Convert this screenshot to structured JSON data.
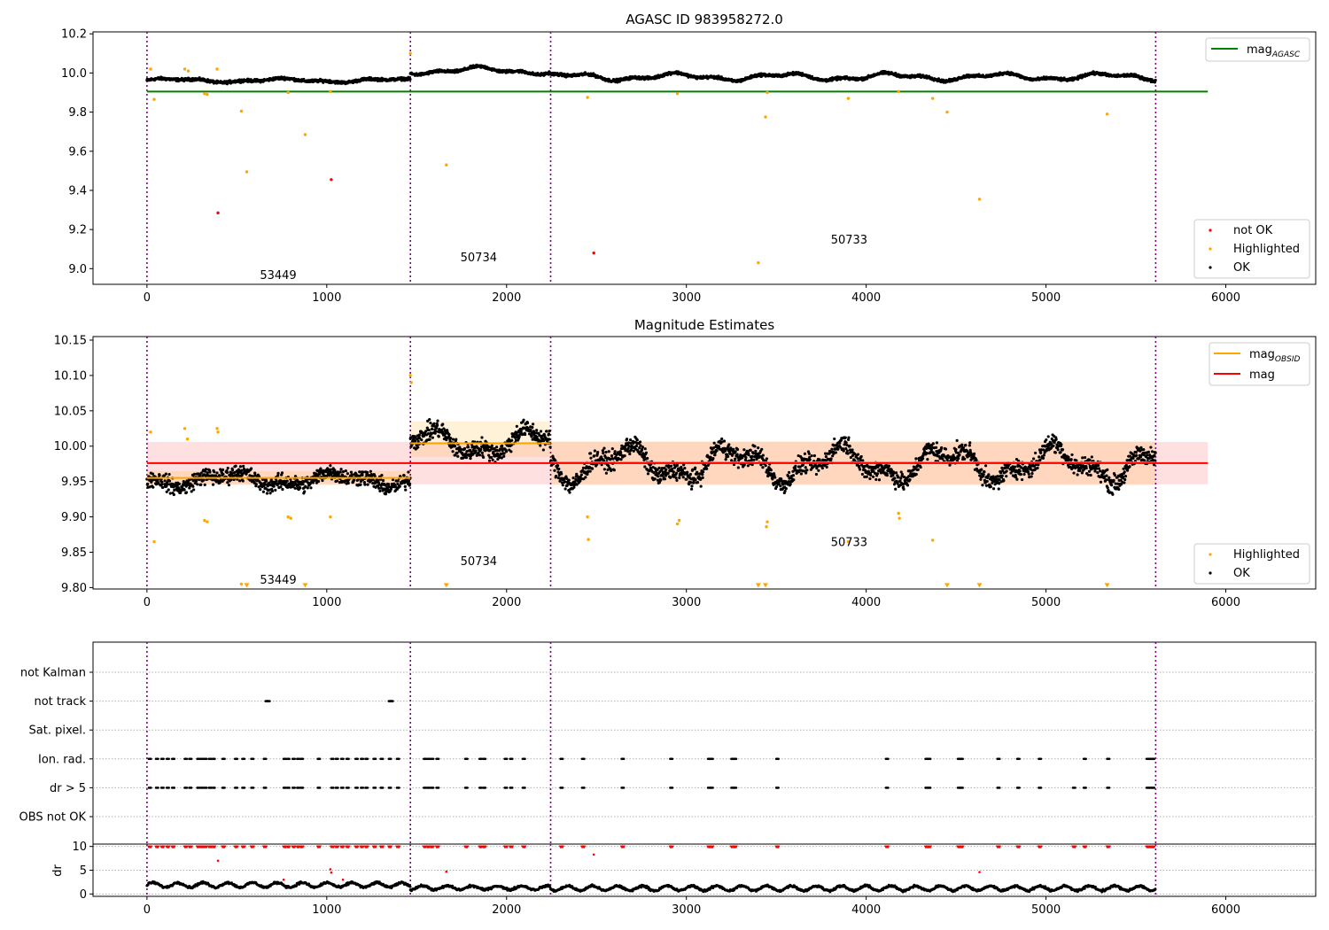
{
  "chart_data": [
    {
      "type": "scatter",
      "title": "AGASC ID 983958272.0",
      "xlabel": "",
      "ylabel": "",
      "xlim": [
        -300,
        6500
      ],
      "ylim": [
        8.92,
        10.21
      ],
      "xticks": [
        0,
        1000,
        2000,
        3000,
        4000,
        5000,
        6000
      ],
      "yticks": [
        9.0,
        9.2,
        9.4,
        9.6,
        9.8,
        10.0,
        10.2
      ],
      "ytick_labels": [
        "9.0",
        "9.2",
        "9.4",
        "9.6",
        "9.8",
        "10.0",
        "10.2"
      ],
      "obsid_boundaries": [
        0,
        1465,
        2245,
        5610
      ],
      "obsid_labels": [
        {
          "text": "53449",
          "x": 730,
          "y": 8.97
        },
        {
          "text": "50734",
          "x": 1845,
          "y": 9.06
        },
        {
          "text": "50733",
          "x": 3905,
          "y": 9.15
        }
      ],
      "reference_lines": [
        {
          "name": "mag_AGASC",
          "y": 9.905,
          "x": [
            0,
            5900
          ],
          "color": "#008000"
        }
      ],
      "legend_top": [
        {
          "label": "mag",
          "subscript": "AGASC",
          "color": "#008000"
        }
      ],
      "legend_bottom": [
        {
          "label": "not OK",
          "color": "#ff0000"
        },
        {
          "label": "Highlighted",
          "color": "#ffa500"
        },
        {
          "label": "OK",
          "color": "#000000"
        }
      ],
      "series": [
        {
          "name": "OK",
          "color": "#000000",
          "segments": [
            {
              "x": [
                0,
                1465
              ],
              "base": 9.962,
              "amp": 0.012,
              "noise": 0.012
            },
            {
              "x": [
                1465,
                2245
              ],
              "base": 10.012,
              "amp": 0.022,
              "noise": 0.012
            },
            {
              "x": [
                2245,
                5610
              ],
              "base": 9.98,
              "amp": 0.022,
              "noise": 0.012
            }
          ]
        },
        {
          "name": "Highlighted",
          "color": "#ffa500",
          "points": [
            [
              20,
              10.02
            ],
            [
              40,
              9.865
            ],
            [
              210,
              10.02
            ],
            [
              230,
              10.01
            ],
            [
              320,
              9.895
            ],
            [
              335,
              9.89
            ],
            [
              390,
              10.02
            ],
            [
              525,
              9.805
            ],
            [
              555,
              9.495
            ],
            [
              785,
              9.9
            ],
            [
              880,
              9.685
            ],
            [
              1020,
              9.905
            ],
            [
              1465,
              10.1
            ],
            [
              1665,
              9.53
            ],
            [
              2450,
              9.875
            ],
            [
              2950,
              9.895
            ],
            [
              3400,
              9.03
            ],
            [
              3440,
              9.775
            ],
            [
              3450,
              9.9
            ],
            [
              3900,
              9.87
            ],
            [
              4180,
              9.905
            ],
            [
              4370,
              9.87
            ],
            [
              4450,
              9.8
            ],
            [
              4630,
              9.355
            ],
            [
              5340,
              9.79
            ]
          ]
        },
        {
          "name": "not OK",
          "color": "#ff0000",
          "points": [
            [
              395,
              9.285
            ],
            [
              1025,
              9.455
            ],
            [
              2485,
              9.08
            ]
          ]
        }
      ]
    },
    {
      "type": "scatter",
      "title": "Magnitude Estimates",
      "xlabel": "",
      "ylabel": "",
      "xlim": [
        -300,
        6500
      ],
      "ylim": [
        9.798,
        10.155
      ],
      "xticks": [
        0,
        1000,
        2000,
        3000,
        4000,
        5000,
        6000
      ],
      "yticks": [
        9.8,
        9.85,
        9.9,
        9.95,
        10.0,
        10.05,
        10.1,
        10.15
      ],
      "ytick_labels": [
        "9.80",
        "9.85",
        "9.90",
        "9.95",
        "10.00",
        "10.05",
        "10.10",
        "10.15"
      ],
      "obsid_boundaries": [
        0,
        1465,
        2245,
        5610
      ],
      "obsid_labels": [
        {
          "text": "53449",
          "x": 730,
          "y": 9.812
        },
        {
          "text": "50734",
          "x": 1845,
          "y": 9.838
        },
        {
          "text": "50733",
          "x": 3905,
          "y": 9.865
        }
      ],
      "mag": {
        "value": 9.976,
        "band": [
          9.946,
          10.006
        ],
        "x": [
          0,
          5900
        ],
        "color": "#ff0000"
      },
      "mag_obsid": [
        {
          "x": [
            0,
            1465
          ],
          "value": 9.955,
          "band": [
            9.945,
            9.965
          ]
        },
        {
          "x": [
            1465,
            2245
          ],
          "value": 10.004,
          "band": [
            9.985,
            10.035
          ]
        },
        {
          "x": [
            2245,
            5610
          ],
          "value": 9.977,
          "band": [
            9.945,
            10.007
          ]
        }
      ],
      "legend_top": [
        {
          "label": "mag",
          "subscript": "OBSID",
          "color": "#ffa500"
        },
        {
          "label": "mag",
          "subscript": "",
          "color": "#ff0000"
        }
      ],
      "legend_bottom": [
        {
          "label": "Highlighted",
          "color": "#ffa500"
        },
        {
          "label": "OK",
          "color": "#000000"
        }
      ],
      "series": [
        {
          "name": "OK",
          "color": "#000000",
          "segments": [
            {
              "x": [
                0,
                1465
              ],
              "base": 9.953,
              "amp": 0.012,
              "noise": 0.014
            },
            {
              "x": [
                1465,
                2245
              ],
              "base": 10.005,
              "amp": 0.022,
              "noise": 0.016
            },
            {
              "x": [
                2245,
                5610
              ],
              "base": 9.975,
              "amp": 0.03,
              "noise": 0.016
            }
          ]
        },
        {
          "name": "Highlighted",
          "color": "#ffa500",
          "points": [
            [
              20,
              10.02
            ],
            [
              40,
              9.865
            ],
            [
              210,
              10.025
            ],
            [
              225,
              10.01
            ],
            [
              320,
              9.895
            ],
            [
              335,
              9.893
            ],
            [
              390,
              10.025
            ],
            [
              395,
              10.02
            ],
            [
              525,
              9.805
            ],
            [
              785,
              9.9
            ],
            [
              800,
              9.898
            ],
            [
              1020,
              9.9
            ],
            [
              1465,
              10.1
            ],
            [
              1470,
              10.09
            ],
            [
              2450,
              9.9
            ],
            [
              2455,
              9.868
            ],
            [
              2950,
              9.89
            ],
            [
              2960,
              9.895
            ],
            [
              3450,
              9.893
            ],
            [
              3445,
              9.886
            ],
            [
              3900,
              9.865
            ],
            [
              4180,
              9.905
            ],
            [
              4185,
              9.898
            ],
            [
              4370,
              9.867
            ]
          ]
        },
        {
          "name": "Highlighted (below range)",
          "color": "#ffa500",
          "points": [
            [
              555,
              9.8
            ],
            [
              880,
              9.8
            ],
            [
              1665,
              9.8
            ],
            [
              3400,
              9.8
            ],
            [
              3440,
              9.8
            ],
            [
              4450,
              9.8
            ],
            [
              4630,
              9.8
            ],
            [
              5340,
              9.8
            ]
          ]
        }
      ]
    },
    {
      "type": "scatter",
      "title": "",
      "xlabel": "",
      "ylabel": "",
      "xlim": [
        -300,
        6500
      ],
      "categories": [
        "not Kalman",
        "not track",
        "Sat. pixel.",
        "Ion. rad.",
        "dr > 5",
        "OBS not OK"
      ],
      "obsid_boundaries": [
        0,
        1465,
        2245,
        5610
      ],
      "flag_points": {
        "not track": [
          660,
          670,
          1345,
          1355
        ],
        "Ion. rad.": [
          10,
          50,
          80,
          110,
          140,
          210,
          235,
          280,
          300,
          320,
          345,
          365,
          420,
          490,
          530,
          580,
          650,
          760,
          780,
          810,
          835,
          855,
          950,
          1025,
          1050,
          1080,
          1110,
          1160,
          1190,
          1215,
          1260,
          1300,
          1345,
          1390,
          1540,
          1560,
          1580,
          1610,
          1770,
          1850,
          1870,
          1990,
          2020,
          2090,
          2300,
          2420,
          2640,
          2910,
          3120,
          3135,
          3250,
          3265,
          3500,
          4110,
          4330,
          4345,
          4510,
          4525,
          4730,
          4840,
          4960,
          5210,
          5340,
          5560,
          5575,
          5590
        ],
        "dr > 5": [
          10,
          50,
          80,
          110,
          140,
          210,
          235,
          280,
          300,
          320,
          345,
          365,
          420,
          490,
          530,
          580,
          650,
          760,
          780,
          810,
          835,
          855,
          950,
          1025,
          1050,
          1080,
          1110,
          1160,
          1190,
          1215,
          1260,
          1300,
          1345,
          1390,
          1540,
          1560,
          1580,
          1610,
          1770,
          1850,
          1870,
          1990,
          2020,
          2090,
          2300,
          2420,
          2640,
          2910,
          3120,
          3135,
          3250,
          3265,
          3500,
          4110,
          4330,
          4345,
          4510,
          4525,
          4730,
          4840,
          4960,
          5150,
          5210,
          5340,
          5560,
          5575,
          5590
        ]
      }
    },
    {
      "type": "scatter",
      "title": "",
      "xlabel": "",
      "ylabel": "dr",
      "xlim": [
        -300,
        6500
      ],
      "ylim": [
        -0.5,
        10.5
      ],
      "yticks": [
        0,
        5,
        10
      ],
      "ytick_labels": [
        "0",
        "5",
        "10"
      ],
      "xticks": [
        0,
        1000,
        2000,
        3000,
        4000,
        5000,
        6000
      ],
      "obsid_boundaries": [
        0,
        1465,
        2245,
        5610
      ],
      "dr_ok": {
        "color": "#000000",
        "segments": [
          {
            "x": [
              0,
              1465
            ],
            "base": 1.9,
            "amp": 0.5
          },
          {
            "x": [
              1465,
              2245
            ],
            "base": 1.3,
            "amp": 0.4
          },
          {
            "x": [
              2245,
              5610
            ],
            "base": 1.2,
            "amp": 0.5
          }
        ]
      },
      "dr_flagged": {
        "color": "#ff0000",
        "capped": [
          10,
          50,
          80,
          110,
          140,
          210,
          235,
          280,
          300,
          320,
          345,
          365,
          420,
          490,
          530,
          580,
          650,
          760,
          780,
          810,
          835,
          855,
          950,
          1025,
          1050,
          1080,
          1110,
          1160,
          1190,
          1215,
          1260,
          1300,
          1345,
          1390,
          1540,
          1560,
          1580,
          1610,
          1770,
          1850,
          1870,
          1990,
          2020,
          2090,
          2300,
          2420,
          2640,
          2910,
          3120,
          3135,
          3250,
          3265,
          3500,
          4110,
          4330,
          4345,
          4510,
          4525,
          4730,
          4840,
          4960,
          5150,
          5210,
          5340,
          5560,
          5575,
          5590
        ],
        "points": [
          [
            395,
            7.0
          ],
          [
            1020,
            5.2
          ],
          [
            1025,
            4.5
          ],
          [
            1090,
            3.0
          ],
          [
            760,
            3.0
          ],
          [
            1665,
            4.7
          ],
          [
            2485,
            8.3
          ],
          [
            4630,
            4.6
          ]
        ]
      }
    }
  ]
}
